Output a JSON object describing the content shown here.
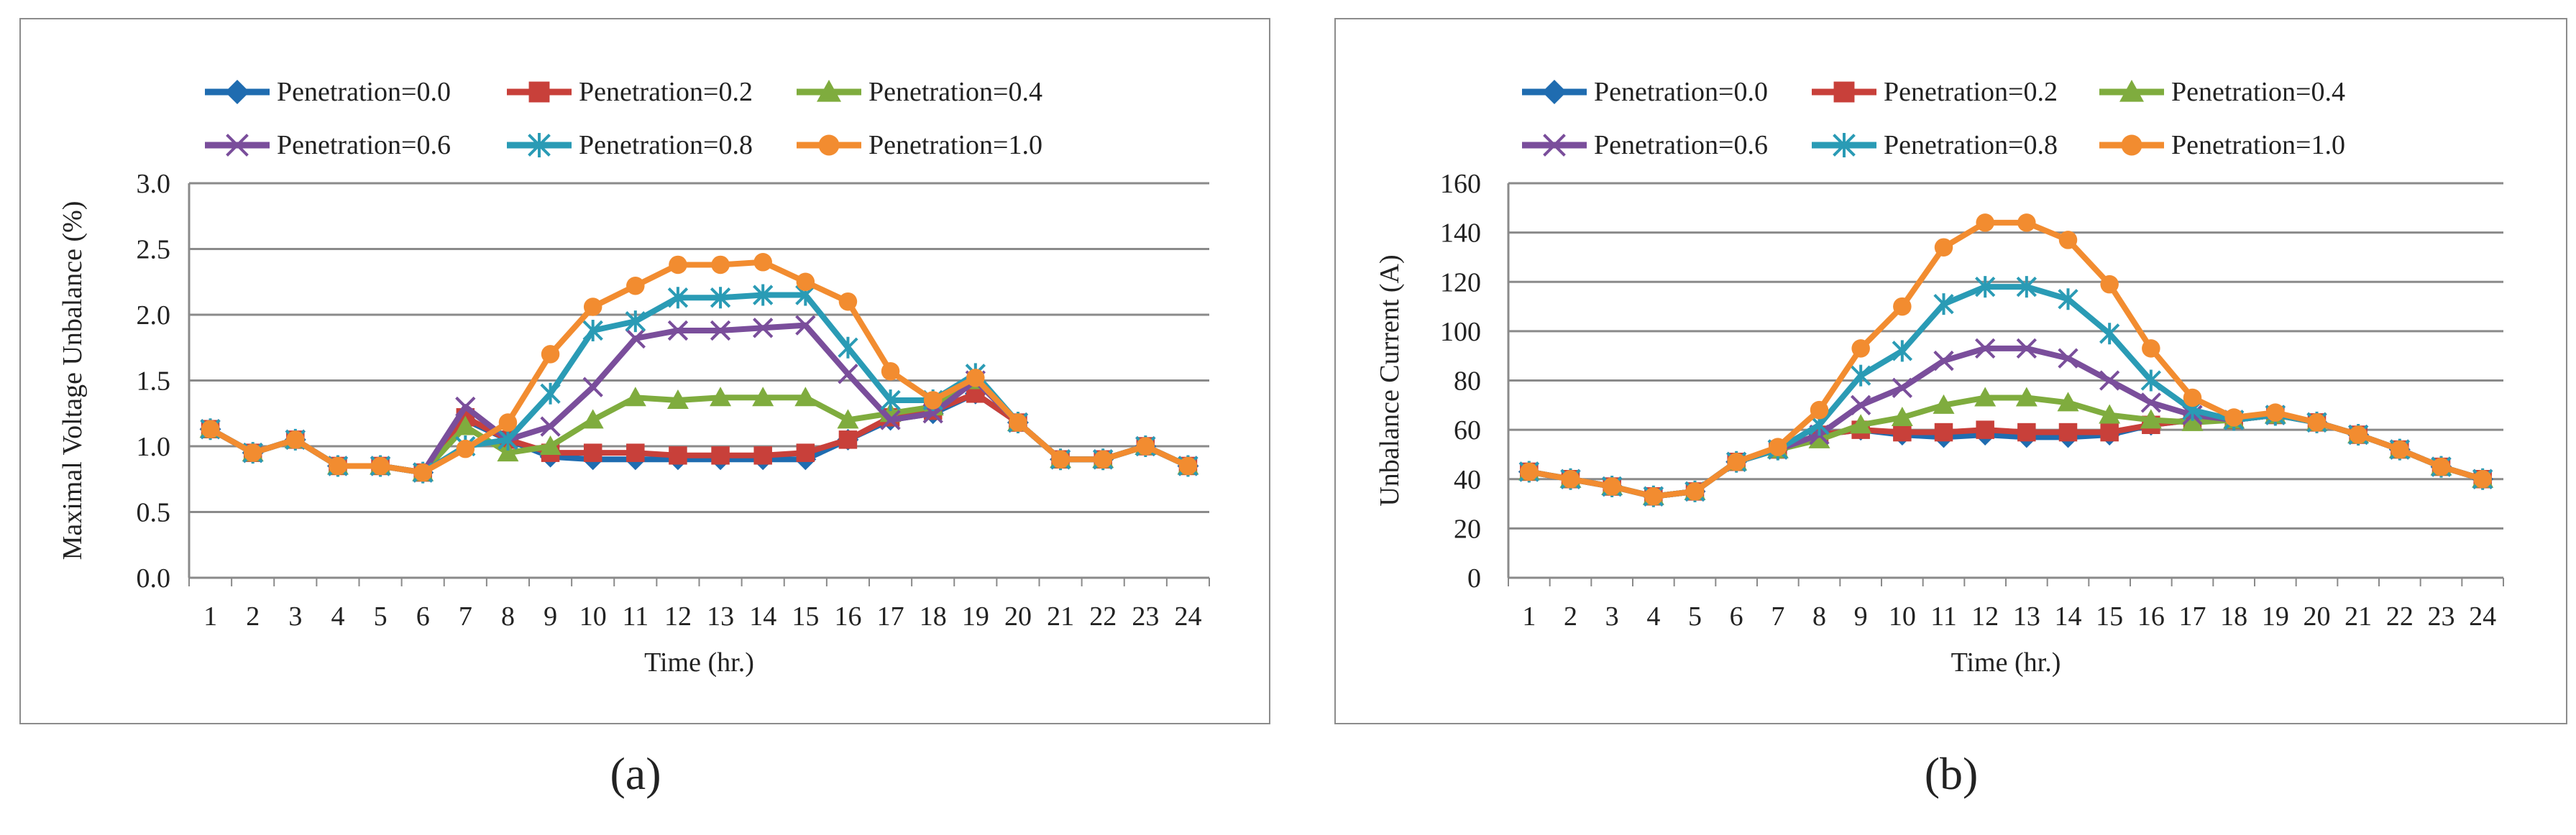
{
  "chart_data": [
    {
      "type": "line",
      "panel_label": "(a)",
      "title": "",
      "xlabel": "Time (hr.)",
      "ylabel": "Maximal Voltage Unbalance (%)",
      "ylim": [
        0,
        3.0
      ],
      "yticks": [
        "0.0",
        "0.5",
        "1.0",
        "1.5",
        "2.0",
        "2.5",
        "3.0"
      ],
      "ytick_values": [
        0,
        0.5,
        1.0,
        1.5,
        2.0,
        2.5,
        3.0
      ],
      "categories": [
        "1",
        "2",
        "3",
        "4",
        "5",
        "6",
        "7",
        "8",
        "9",
        "10",
        "11",
        "12",
        "13",
        "14",
        "15",
        "16",
        "17",
        "18",
        "19",
        "20",
        "21",
        "22",
        "23",
        "24"
      ],
      "grid": "horizontal",
      "legend_position": "top",
      "series": [
        {
          "name": "Penetration=0.0",
          "color": "#1f6cb0",
          "marker": "diamond",
          "values": [
            1.13,
            0.95,
            1.05,
            0.85,
            0.85,
            0.8,
            1.2,
            1.05,
            0.92,
            0.9,
            0.9,
            0.9,
            0.9,
            0.9,
            0.9,
            1.05,
            1.2,
            1.25,
            1.4,
            1.18,
            0.9,
            0.9,
            1.0,
            0.85
          ]
        },
        {
          "name": "Penetration=0.2",
          "color": "#c8403a",
          "marker": "square",
          "values": [
            1.13,
            0.95,
            1.05,
            0.85,
            0.85,
            0.8,
            1.22,
            1.05,
            0.95,
            0.95,
            0.95,
            0.93,
            0.93,
            0.93,
            0.95,
            1.05,
            1.22,
            1.27,
            1.4,
            1.18,
            0.9,
            0.9,
            1.0,
            0.85
          ]
        },
        {
          "name": "Penetration=0.4",
          "color": "#7fac3e",
          "marker": "triangle",
          "values": [
            1.13,
            0.95,
            1.05,
            0.85,
            0.85,
            0.8,
            1.15,
            0.95,
            1.0,
            1.2,
            1.37,
            1.35,
            1.37,
            1.37,
            1.37,
            1.2,
            1.25,
            1.3,
            1.5,
            1.18,
            0.9,
            0.9,
            1.0,
            0.85
          ]
        },
        {
          "name": "Penetration=0.6",
          "color": "#7a4e9b",
          "marker": "x",
          "values": [
            1.13,
            0.95,
            1.05,
            0.85,
            0.85,
            0.8,
            1.3,
            1.05,
            1.15,
            1.45,
            1.82,
            1.88,
            1.88,
            1.9,
            1.92,
            1.55,
            1.2,
            1.25,
            1.5,
            1.18,
            0.9,
            0.9,
            1.0,
            0.85
          ]
        },
        {
          "name": "Penetration=0.8",
          "color": "#2a9bb5",
          "marker": "asterisk",
          "values": [
            1.13,
            0.95,
            1.05,
            0.85,
            0.85,
            0.8,
            1.0,
            1.05,
            1.4,
            1.88,
            1.95,
            2.13,
            2.13,
            2.15,
            2.15,
            1.75,
            1.35,
            1.35,
            1.55,
            1.18,
            0.9,
            0.9,
            1.0,
            0.85
          ]
        },
        {
          "name": "Penetration=1.0",
          "color": "#f28c30",
          "marker": "circle",
          "values": [
            1.13,
            0.95,
            1.05,
            0.85,
            0.85,
            0.8,
            0.98,
            1.18,
            1.7,
            2.06,
            2.22,
            2.38,
            2.38,
            2.4,
            2.25,
            2.1,
            1.57,
            1.35,
            1.52,
            1.18,
            0.9,
            0.9,
            1.0,
            0.85
          ]
        }
      ]
    },
    {
      "type": "line",
      "panel_label": "(b)",
      "title": "",
      "xlabel": "Time (hr.)",
      "ylabel": "Unbalance Current (A)",
      "ylim": [
        0,
        160
      ],
      "yticks": [
        "0",
        "20",
        "40",
        "60",
        "80",
        "100",
        "120",
        "140",
        "160"
      ],
      "ytick_values": [
        0,
        20,
        40,
        60,
        80,
        100,
        120,
        140,
        160
      ],
      "categories": [
        "1",
        "2",
        "3",
        "4",
        "5",
        "6",
        "7",
        "8",
        "9",
        "10",
        "11",
        "12",
        "13",
        "14",
        "15",
        "16",
        "17",
        "18",
        "19",
        "20",
        "21",
        "22",
        "23",
        "24"
      ],
      "grid": "horizontal",
      "legend_position": "top",
      "series": [
        {
          "name": "Penetration=0.0",
          "color": "#1f6cb0",
          "marker": "diamond",
          "values": [
            43,
            40,
            37,
            33,
            35,
            47,
            52,
            58,
            60,
            58,
            57,
            58,
            57,
            57,
            58,
            62,
            64,
            64,
            66,
            63,
            58,
            52,
            45,
            40
          ]
        },
        {
          "name": "Penetration=0.2",
          "color": "#c8403a",
          "marker": "square",
          "values": [
            43,
            40,
            37,
            33,
            35,
            47,
            52,
            58,
            60,
            59,
            59,
            60,
            59,
            59,
            59,
            62,
            64,
            64,
            66,
            63,
            58,
            52,
            45,
            40
          ]
        },
        {
          "name": "Penetration=0.4",
          "color": "#7fac3e",
          "marker": "triangle",
          "values": [
            43,
            40,
            37,
            33,
            35,
            47,
            52,
            56,
            62,
            65,
            70,
            73,
            73,
            71,
            66,
            64,
            63,
            64,
            66,
            63,
            58,
            52,
            45,
            40
          ]
        },
        {
          "name": "Penetration=0.6",
          "color": "#7a4e9b",
          "marker": "x",
          "values": [
            43,
            40,
            37,
            33,
            35,
            47,
            52,
            58,
            70,
            77,
            88,
            93,
            93,
            89,
            80,
            71,
            66,
            64,
            66,
            63,
            58,
            52,
            45,
            40
          ]
        },
        {
          "name": "Penetration=0.8",
          "color": "#2a9bb5",
          "marker": "asterisk",
          "values": [
            43,
            40,
            37,
            33,
            35,
            47,
            52,
            62,
            82,
            92,
            111,
            118,
            118,
            113,
            99,
            80,
            68,
            64,
            66,
            63,
            58,
            52,
            45,
            40
          ]
        },
        {
          "name": "Penetration=1.0",
          "color": "#f28c30",
          "marker": "circle",
          "values": [
            43,
            40,
            37,
            33,
            35,
            47,
            53,
            68,
            93,
            110,
            134,
            144,
            144,
            137,
            119,
            93,
            73,
            65,
            67,
            63,
            58,
            52,
            45,
            40
          ]
        }
      ]
    }
  ]
}
